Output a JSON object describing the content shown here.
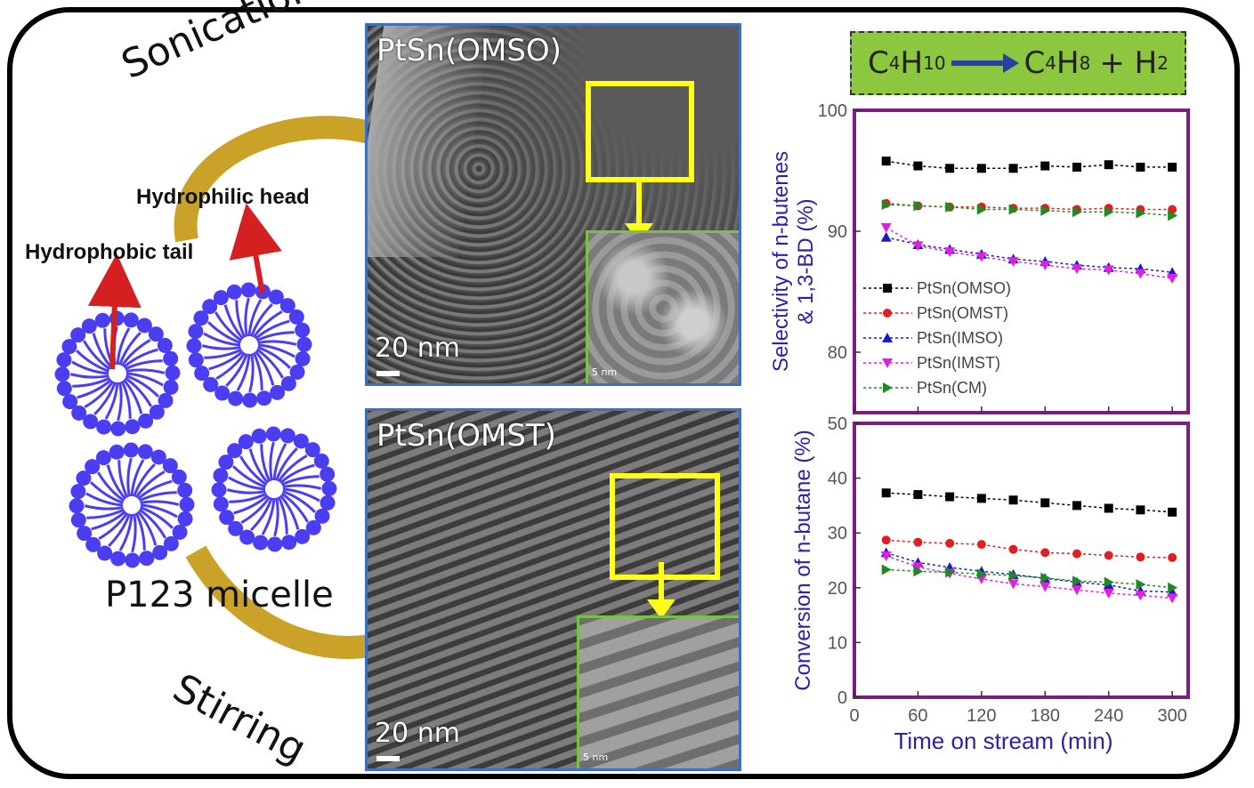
{
  "left_panel": {
    "sonication_label": "Sonication",
    "stirring_label": "Stirring",
    "hydrophilic_label": "Hydrophilic head",
    "hydrophobic_label": "Hydrophobic tail",
    "micelle_label": "P123 micelle"
  },
  "tem_images": [
    {
      "title": "PtSn(OMSO)",
      "scale": "20 nm",
      "inset_scale": "5 nm"
    },
    {
      "title": "PtSn(OMST)",
      "scale": "20 nm",
      "inset_scale": "5 nm"
    }
  ],
  "reaction": {
    "reactant": "C",
    "reactant_sub1": "4",
    "reactant_h": "H",
    "reactant_sub2": "10",
    "product": "C",
    "product_sub1": "4",
    "product_h": "H",
    "product_sub2": "8",
    "plus": "+ H",
    "h2_sub": "2"
  },
  "colors": {
    "micelle": "#4b3df0",
    "arrow": "#c9a227",
    "red_arrow": "#d42020",
    "plot_frame": "#7b1f7f",
    "axis_label": "#2a22a8",
    "reaction_bg": "#8dc63f"
  },
  "chart_data": [
    {
      "type": "line",
      "ylabel": "Selectivity of n-butenes & 1,3-BD (%)",
      "ylim": [
        75,
        100
      ],
      "yticks": [
        80,
        90,
        100
      ],
      "x": [
        30,
        60,
        90,
        120,
        150,
        180,
        210,
        240,
        270,
        300
      ],
      "series": [
        {
          "name": "PtSn(OMSO)",
          "color": "#000000",
          "marker": "square",
          "values": [
            95.8,
            95.4,
            95.2,
            95.2,
            95.2,
            95.4,
            95.3,
            95.5,
            95.3,
            95.3
          ]
        },
        {
          "name": "PtSn(OMST)",
          "color": "#e02020",
          "marker": "circle",
          "values": [
            92.3,
            92.1,
            92.0,
            92.0,
            91.9,
            91.9,
            91.8,
            91.9,
            91.8,
            91.8
          ]
        },
        {
          "name": "PtSn(IMSO)",
          "color": "#1a1acc",
          "marker": "triangle-up",
          "values": [
            89.5,
            88.9,
            88.5,
            88.1,
            87.7,
            87.5,
            87.2,
            87.0,
            86.9,
            86.6
          ]
        },
        {
          "name": "PtSn(IMST)",
          "color": "#e020e0",
          "marker": "triangle-down",
          "values": [
            90.3,
            88.8,
            88.3,
            87.9,
            87.5,
            87.2,
            86.9,
            86.8,
            86.5,
            86.1
          ]
        },
        {
          "name": "PtSn(CM)",
          "color": "#1f8a1f",
          "marker": "triangle-right",
          "values": [
            92.2,
            92.1,
            92.0,
            91.8,
            91.8,
            91.7,
            91.6,
            91.6,
            91.5,
            91.3
          ]
        }
      ]
    },
    {
      "type": "line",
      "xlabel": "Time on stream (min)",
      "ylabel": "Conversion of n-butane (%)",
      "ylim": [
        0,
        50
      ],
      "yticks": [
        0,
        10,
        20,
        30,
        40,
        50
      ],
      "xlim": [
        0,
        315
      ],
      "xticks": [
        0,
        60,
        120,
        180,
        240,
        300
      ],
      "x": [
        30,
        60,
        90,
        120,
        150,
        180,
        210,
        240,
        270,
        300
      ],
      "series": [
        {
          "name": "PtSn(OMSO)",
          "color": "#000000",
          "marker": "square",
          "values": [
            37.3,
            37.0,
            36.6,
            36.3,
            36.0,
            35.5,
            35.0,
            34.5,
            34.2,
            33.8
          ]
        },
        {
          "name": "PtSn(OMST)",
          "color": "#e02020",
          "marker": "circle",
          "values": [
            28.7,
            28.3,
            28.1,
            27.9,
            27.0,
            26.4,
            26.2,
            25.9,
            25.6,
            25.5
          ]
        },
        {
          "name": "PtSn(IMSO)",
          "color": "#1a1acc",
          "marker": "triangle-up",
          "values": [
            26.4,
            24.6,
            23.7,
            23.0,
            22.4,
            21.7,
            21.0,
            20.5,
            19.4,
            19.2
          ]
        },
        {
          "name": "PtSn(IMST)",
          "color": "#e020e0",
          "marker": "triangle-down",
          "values": [
            25.8,
            23.8,
            22.6,
            21.6,
            20.7,
            20.2,
            19.6,
            19.0,
            18.6,
            18.1
          ]
        },
        {
          "name": "PtSn(CM)",
          "color": "#1f8a1f",
          "marker": "triangle-right",
          "values": [
            23.3,
            23.0,
            22.8,
            22.5,
            22.2,
            21.8,
            21.2,
            21.0,
            20.6,
            20.0
          ]
        }
      ]
    }
  ]
}
